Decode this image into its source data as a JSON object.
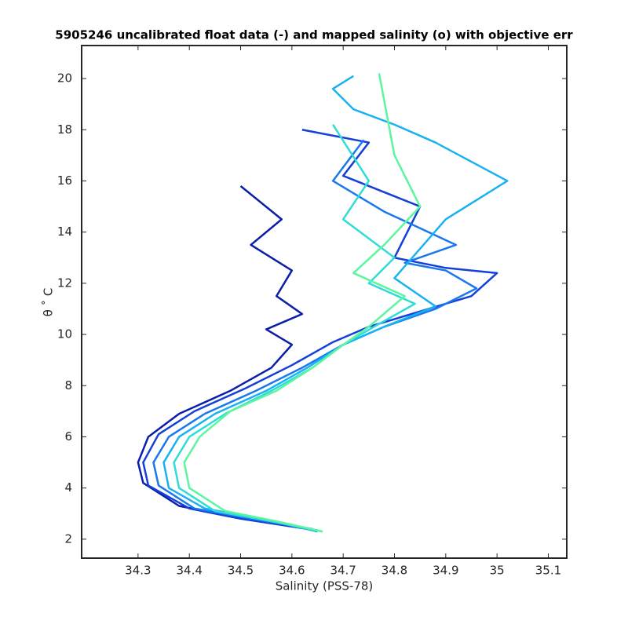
{
  "chart_data": {
    "type": "line",
    "title": "5905246 uncalibrated float data (-) and mapped salinity (o) with objective err",
    "x_label": "Salinity (PSS-78)",
    "y_label": "θ ˚ C",
    "xlim": [
      34.19,
      35.136
    ],
    "ylim": [
      1.26,
      21.29
    ],
    "xticks": [
      34.3,
      34.4,
      34.5,
      34.6,
      34.7,
      34.8,
      34.9,
      35,
      35.1
    ],
    "yticks": [
      2,
      4,
      6,
      8,
      10,
      12,
      14,
      16,
      18,
      20
    ],
    "grid": false,
    "series": [
      {
        "color": "#0b1ea8",
        "x": [
          34.6,
          34.48,
          34.38,
          34.31,
          34.3,
          34.32,
          34.38,
          34.48,
          34.56,
          34.6,
          34.55,
          34.62,
          34.57,
          34.6,
          34.52,
          34.58,
          34.5
        ],
        "values": [
          2.5,
          2.9,
          3.3,
          4.2,
          5,
          6,
          6.9,
          7.8,
          8.7,
          9.6,
          10.2,
          10.8,
          11.5,
          12.5,
          13.5,
          14.5,
          15.8
        ]
      },
      {
        "color": "#1440d8",
        "x": [
          34.63,
          34.5,
          34.4,
          34.32,
          34.31,
          34.34,
          34.41,
          34.51,
          34.6,
          34.68,
          34.75,
          34.85,
          34.95,
          35.0,
          34.9,
          34.8,
          34.85,
          34.7,
          34.75,
          34.62
        ],
        "values": [
          2.4,
          2.8,
          3.2,
          4.1,
          5,
          6.1,
          7,
          7.9,
          8.8,
          9.7,
          10.3,
          10.9,
          11.5,
          12.4,
          12.6,
          13,
          15,
          16.2,
          17.5,
          18
        ]
      },
      {
        "color": "#1a78ee",
        "x": [
          34.64,
          34.52,
          34.41,
          34.34,
          34.33,
          34.36,
          34.43,
          34.53,
          34.62,
          34.7,
          34.78,
          34.88,
          34.96,
          34.9,
          34.82,
          34.92,
          34.78,
          34.68,
          34.74
        ],
        "values": [
          2.4,
          2.8,
          3.2,
          4.1,
          5,
          6,
          6.9,
          7.8,
          8.7,
          9.6,
          10.3,
          11,
          11.8,
          12.5,
          12.8,
          13.5,
          14.8,
          16,
          17.6
        ]
      },
      {
        "color": "#18b2f3",
        "x": [
          34.65,
          34.54,
          34.43,
          34.36,
          34.35,
          34.38,
          34.45,
          34.55,
          34.63,
          34.7,
          34.78,
          34.88,
          34.8,
          34.9,
          35.02,
          34.88,
          34.8,
          34.72,
          34.68,
          34.72
        ],
        "values": [
          2.3,
          2.8,
          3.2,
          4,
          5,
          6,
          6.9,
          7.8,
          8.7,
          9.6,
          10.3,
          11.1,
          12.2,
          14.5,
          16,
          17.5,
          18.2,
          18.8,
          19.6,
          20.1
        ]
      },
      {
        "color": "#30dcd8",
        "x": [
          34.66,
          34.56,
          34.45,
          34.38,
          34.37,
          34.4,
          34.47,
          34.56,
          34.64,
          34.7,
          34.76,
          34.84,
          34.75,
          34.8,
          34.7,
          34.75,
          34.68
        ],
        "values": [
          2.3,
          2.7,
          3.1,
          4,
          5,
          6,
          6.9,
          7.8,
          8.7,
          9.6,
          10.3,
          11.2,
          12,
          13,
          14.5,
          16,
          18.2
        ]
      },
      {
        "color": "#5cf5a0",
        "x": [
          34.66,
          34.57,
          34.47,
          34.4,
          34.39,
          34.42,
          34.48,
          34.57,
          34.64,
          34.7,
          34.75,
          34.82,
          34.72,
          34.78,
          34.85,
          34.8,
          34.77
        ],
        "values": [
          2.3,
          2.7,
          3.1,
          4,
          5,
          6,
          7,
          7.8,
          8.7,
          9.6,
          10.3,
          11.5,
          12.4,
          13.5,
          15,
          17,
          20.2
        ]
      }
    ]
  }
}
